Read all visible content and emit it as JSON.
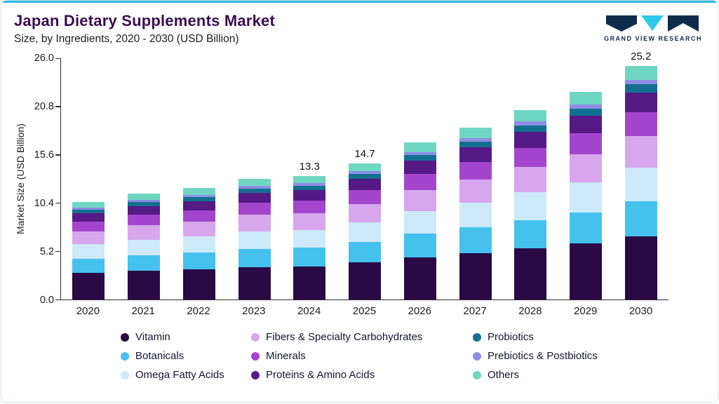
{
  "header": {
    "title": "Japan Dietary Supplements Market",
    "subtitle": "Size, by Ingredients, 2020 - 2030 (USD Billion)",
    "logo_text": "GRAND VIEW RESEARCH"
  },
  "colors": {
    "accent": "#2fb9e0",
    "logo_navy": "#0f2b4c",
    "logo_cyan": "#2ec9e8",
    "title": "#3a0d4d"
  },
  "chart_data": {
    "type": "bar",
    "stacked": true,
    "title": "Japan Dietary Supplements Market Size, by Ingredients, 2020 - 2030 (USD Billion)",
    "xlabel": "",
    "ylabel": "Market Size (USD Billion)",
    "ylim": [
      0,
      26
    ],
    "grid": false,
    "legend_position": "bottom",
    "yticks": [
      0.0,
      5.2,
      10.4,
      15.6,
      20.8,
      26.0
    ],
    "ytick_labels": [
      "0.0",
      "5.2",
      "10.4",
      "15.6",
      "20.8",
      "26.0"
    ],
    "categories": [
      "2020",
      "2021",
      "2022",
      "2023",
      "2024",
      "2025",
      "2026",
      "2027",
      "2028",
      "2029",
      "2030"
    ],
    "bar_total_labels": [
      "",
      "",
      "",
      "",
      "13.3",
      "14.7",
      "",
      "",
      "",
      "",
      "25.2"
    ],
    "totals": [
      10.5,
      11.4,
      12.0,
      13.0,
      13.3,
      14.7,
      16.9,
      18.5,
      20.4,
      22.4,
      25.2
    ],
    "series": [
      {
        "name": "Vitamin",
        "color": "#2a0a45",
        "values": [
          2.84,
          3.08,
          3.24,
          3.51,
          3.59,
          3.97,
          4.56,
          5.0,
          5.51,
          6.05,
          6.8
        ]
      },
      {
        "name": "Botanicals",
        "color": "#45c1ee",
        "values": [
          1.58,
          1.71,
          1.8,
          1.95,
          2.0,
          2.21,
          2.54,
          2.78,
          3.06,
          3.36,
          3.78
        ]
      },
      {
        "name": "Omega Fatty Acids",
        "color": "#cde9fa",
        "values": [
          1.52,
          1.65,
          1.74,
          1.89,
          1.93,
          2.13,
          2.45,
          2.68,
          2.96,
          3.25,
          3.65
        ]
      },
      {
        "name": "Fibers & Specialty Carbohydrates",
        "color": "#d7a6ec",
        "values": [
          1.42,
          1.54,
          1.62,
          1.76,
          1.8,
          1.98,
          2.28,
          2.5,
          2.75,
          3.02,
          3.4
        ]
      },
      {
        "name": "Minerals",
        "color": "#a346cd",
        "values": [
          1.05,
          1.14,
          1.2,
          1.3,
          1.33,
          1.47,
          1.69,
          1.85,
          2.04,
          2.24,
          2.52
        ]
      },
      {
        "name": "Proteins & Amino Acids",
        "color": "#551a86",
        "values": [
          0.89,
          0.97,
          1.02,
          1.11,
          1.13,
          1.25,
          1.44,
          1.57,
          1.73,
          1.9,
          2.14
        ]
      },
      {
        "name": "Probiotics",
        "color": "#11708f",
        "values": [
          0.37,
          0.4,
          0.42,
          0.46,
          0.47,
          0.51,
          0.59,
          0.65,
          0.71,
          0.78,
          0.88
        ]
      },
      {
        "name": "Prebiotics & Postbiotics",
        "color": "#8f8de6",
        "values": [
          0.21,
          0.23,
          0.24,
          0.26,
          0.27,
          0.29,
          0.34,
          0.37,
          0.41,
          0.45,
          0.5
        ]
      },
      {
        "name": "Others",
        "color": "#6fd6c1",
        "values": [
          0.63,
          0.68,
          0.72,
          0.78,
          0.8,
          0.88,
          1.01,
          1.11,
          1.22,
          1.34,
          1.51
        ]
      }
    ]
  },
  "legend": {
    "items": [
      {
        "label": "Vitamin",
        "color": "#2a0a45"
      },
      {
        "label": "Fibers & Specialty Carbohydrates",
        "color": "#d7a6ec"
      },
      {
        "label": "Probiotics",
        "color": "#11708f"
      },
      {
        "label": "Botanicals",
        "color": "#45c1ee"
      },
      {
        "label": "Minerals",
        "color": "#a346cd"
      },
      {
        "label": "Prebiotics & Postbiotics",
        "color": "#8f8de6"
      },
      {
        "label": "Omega Fatty Acids",
        "color": "#cde9fa"
      },
      {
        "label": "Proteins & Amino Acids",
        "color": "#551a86"
      },
      {
        "label": "Others",
        "color": "#6fd6c1"
      }
    ]
  }
}
